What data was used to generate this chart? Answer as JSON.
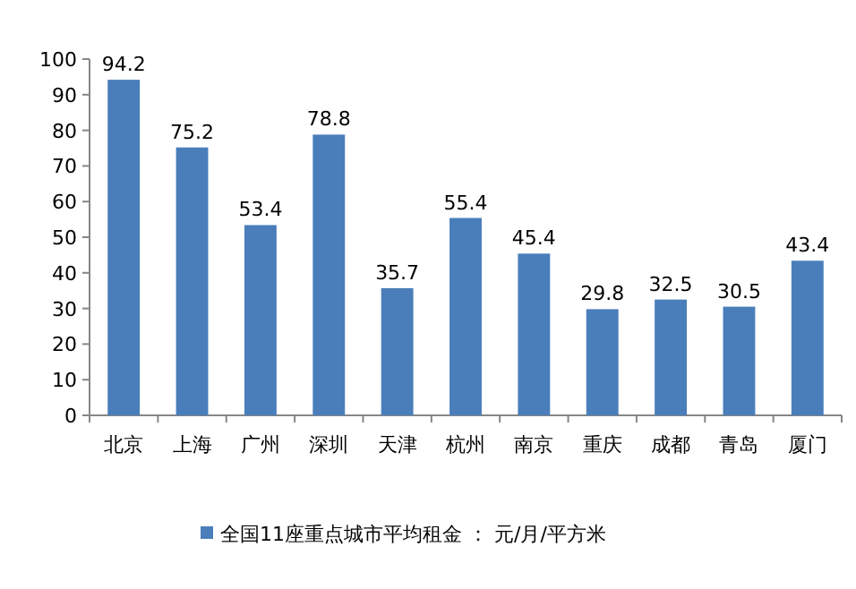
{
  "chart_data": {
    "type": "bar",
    "categories": [
      "北京",
      "上海",
      "广州",
      "深圳",
      "天津",
      "杭州",
      "南京",
      "重庆",
      "成都",
      "青岛",
      "厦门"
    ],
    "series": [
      {
        "name": "全国11座重点城市平均租金 ： 元/月/平方米",
        "color": "#4a7ebb",
        "values": [
          94.2,
          75.2,
          53.4,
          78.8,
          35.7,
          55.4,
          45.4,
          29.8,
          32.5,
          30.5,
          43.4
        ]
      }
    ],
    "ylim": [
      0,
      100
    ],
    "yticks": [
      0,
      10,
      20,
      30,
      40,
      50,
      60,
      70,
      80,
      90,
      100
    ],
    "data_labels": true,
    "legend": "bottom",
    "grid": false
  }
}
